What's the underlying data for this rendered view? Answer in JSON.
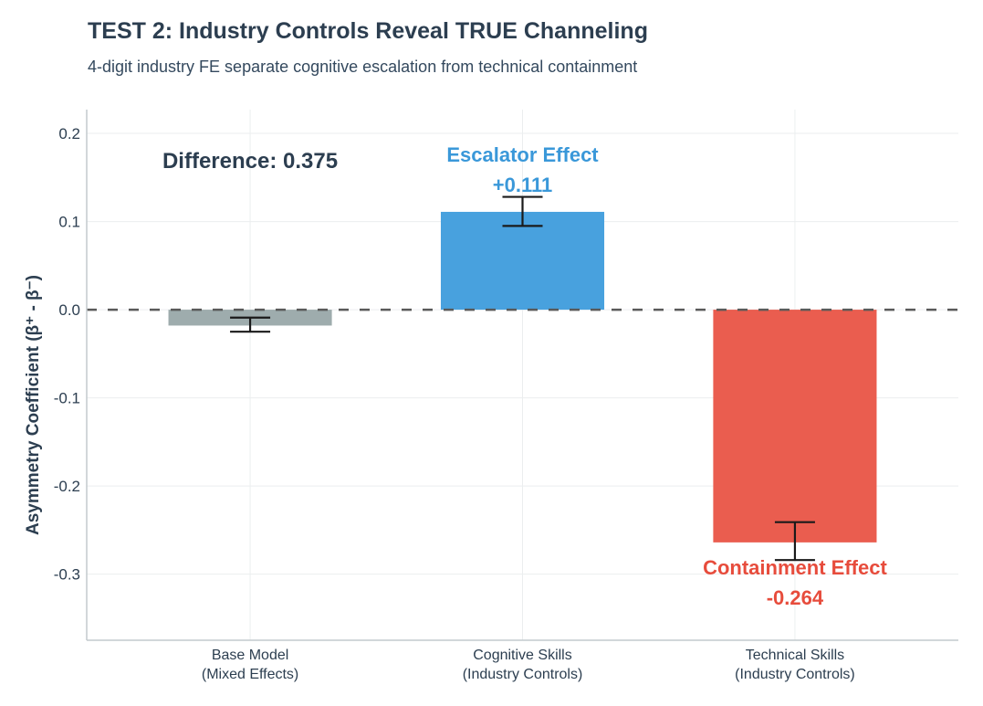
{
  "chart_data": {
    "type": "bar",
    "title": "TEST 2: Industry Controls Reveal TRUE Channeling",
    "subtitle": "4-digit industry FE separate cognitive escalation from technical containment",
    "xlabel": "",
    "ylabel": "Asymmetry Coefficient (β⁺ - β⁻)",
    "categories": [
      [
        "Base Model",
        "(Mixed Effects)"
      ],
      [
        "Cognitive Skills",
        "(Industry Controls)"
      ],
      [
        "Technical Skills",
        "(Industry Controls)"
      ]
    ],
    "values": [
      -0.018,
      0.111,
      -0.264
    ],
    "error_bars": [
      [
        -0.025,
        -0.009
      ],
      [
        0.095,
        0.128
      ],
      [
        -0.284,
        -0.241
      ]
    ],
    "colors": [
      "#9eacad",
      "#48a1de",
      "#ea5d4f"
    ],
    "ylim": [
      -0.375,
      0.227
    ],
    "yticks": [
      0.2,
      0.1,
      0.0,
      -0.1,
      -0.2,
      -0.3
    ],
    "ytick_labels": [
      "0.2",
      "0.1",
      "0.0",
      "-0.1",
      "-0.2",
      "-0.3"
    ],
    "grid": true,
    "reference_line": 0.0,
    "annotations": {
      "difference": {
        "text": "Difference: 0.375",
        "color": "#2c3e50"
      },
      "escalator": {
        "label": "Escalator Effect",
        "value": "+0.111",
        "color": "#3a98d9"
      },
      "containment": {
        "label": "Containment Effect",
        "value": "-0.264",
        "color": "#e74c3c"
      }
    }
  }
}
